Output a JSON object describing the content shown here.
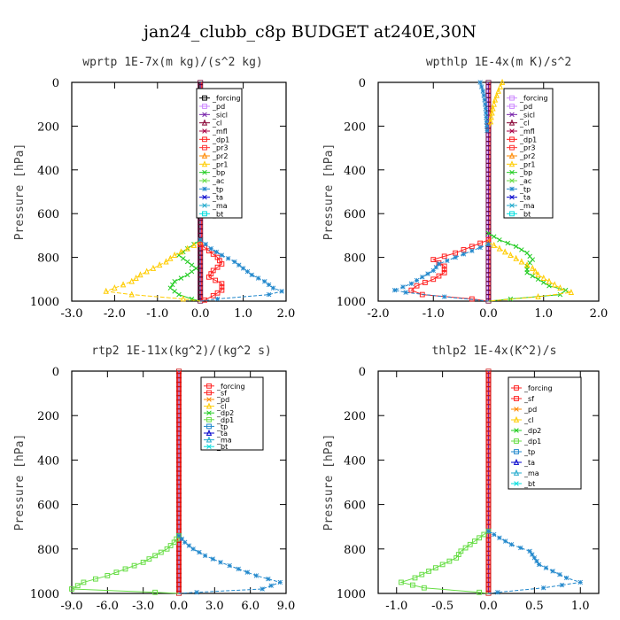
{
  "figure_title": "jan24_clubb_c8p  BUDGET at240E,30N",
  "chart_data": [
    {
      "type": "line",
      "title": "wprtp  1E-7x(m kg)/(s^2 kg)",
      "ylabel": "Pressure [hPa]",
      "xlim": [
        -3.0,
        2.0
      ],
      "ylim": [
        1000,
        0
      ],
      "xticks": [
        "-3.0",
        "-2.0",
        "-1.0",
        "0.0",
        "1.0",
        "2.0"
      ],
      "xtick_values": [
        -3,
        -2,
        -1,
        0,
        1,
        2
      ],
      "yticks": [
        "0",
        "200",
        "400",
        "600",
        "800",
        "1000"
      ],
      "ytick_values": [
        0,
        200,
        400,
        600,
        800,
        1000
      ],
      "legend": [
        "_forcing",
        "_pd",
        "_sicl",
        "_cl",
        "_mfl",
        "_dp1",
        "_pr3",
        "_pr2",
        "_pr1",
        "_bp",
        "_ac",
        "_tp",
        "_ta",
        "_ma",
        "_bt"
      ],
      "legend_colors": [
        "#000000",
        "#cc88ff",
        "#7722aa",
        "#880033",
        "#aa0044",
        "#ff2222",
        "#ff3333",
        "#ff8800",
        "#ffcc00",
        "#22cc22",
        "#66dd44",
        "#2288cc",
        "#0000cc",
        "#22aacc",
        "#00dddd"
      ],
      "series": [
        {
          "name": "_bp",
          "color": "#22cc22",
          "marker": "x",
          "p": [
            720,
            760,
            790,
            820,
            850,
            880,
            910,
            940,
            970,
            990,
            1000
          ],
          "values": [
            0.0,
            -0.3,
            -0.5,
            -0.3,
            -0.1,
            -0.3,
            -0.6,
            -0.7,
            -0.5,
            -0.2,
            0.0
          ]
        },
        {
          "name": "_pr1",
          "color": "#ffcc00",
          "marker": "triangle",
          "p": [
            730,
            760,
            790,
            820,
            850,
            880,
            910,
            940,
            955,
            970,
            990,
            1000
          ],
          "values": [
            0.0,
            -0.3,
            -0.6,
            -0.8,
            -1.1,
            -1.4,
            -1.6,
            -2.0,
            -2.2,
            -1.6,
            -0.4,
            0.0
          ]
        },
        {
          "name": "_dp1",
          "color": "#ff2222",
          "marker": "square",
          "p": [
            740,
            770,
            800,
            830,
            860,
            890,
            920,
            950,
            975,
            995,
            1000
          ],
          "values": [
            0.0,
            0.2,
            0.4,
            0.5,
            0.3,
            0.2,
            0.5,
            0.5,
            0.3,
            0.1,
            0.0
          ]
        },
        {
          "name": "_tp",
          "color": "#2288cc",
          "marker": "star",
          "p": [
            720,
            760,
            790,
            820,
            850,
            880,
            910,
            940,
            955,
            970,
            990,
            1000
          ],
          "values": [
            0.0,
            0.25,
            0.5,
            0.8,
            1.0,
            1.2,
            1.5,
            1.7,
            1.9,
            1.6,
            0.4,
            0.0
          ]
        }
      ]
    },
    {
      "type": "line",
      "title": "wpthlp  1E-4x(m K)/s^2",
      "ylabel": "Pressure [hPa]",
      "xlim": [
        -2.0,
        2.0
      ],
      "ylim": [
        1000,
        0
      ],
      "xticks": [
        "-2.0",
        "-1.0",
        "0.0",
        "1.0",
        "2.0"
      ],
      "xtick_values": [
        -2,
        -1,
        0,
        1,
        2
      ],
      "yticks": [
        "0",
        "200",
        "400",
        "600",
        "800",
        "1000"
      ],
      "ytick_values": [
        0,
        200,
        400,
        600,
        800,
        1000
      ],
      "legend": [
        "_forcing",
        "_pd",
        "_sicl",
        "_cl",
        "_mfl",
        "_dp1",
        "_pr3",
        "_pr2",
        "_pr1",
        "_bp",
        "_ac",
        "_tp",
        "_ta",
        "_ma",
        "_bt"
      ],
      "legend_colors": [
        "#cc88ff",
        "#cc88ff",
        "#7722aa",
        "#880033",
        "#aa0044",
        "#ff2222",
        "#ff3333",
        "#ff8800",
        "#ffcc00",
        "#22cc22",
        "#66dd44",
        "#2288cc",
        "#0000cc",
        "#22aacc",
        "#00dddd"
      ],
      "series": [
        {
          "name": "_tp",
          "color": "#2288cc",
          "marker": "star",
          "p": [
            0,
            40,
            80,
            120,
            160,
            200,
            240
          ],
          "values": [
            -0.15,
            -0.1,
            -0.07,
            -0.05,
            -0.04,
            -0.03,
            -0.02
          ]
        },
        {
          "name": "_pr1",
          "color": "#ffcc00",
          "marker": "triangle",
          "p": [
            0,
            40,
            80,
            120,
            160,
            200
          ],
          "values": [
            0.25,
            0.18,
            0.12,
            0.08,
            0.05,
            0.03
          ]
        },
        {
          "name": "_bp",
          "color": "#22cc22",
          "marker": "x",
          "p": [
            690,
            720,
            750,
            780,
            810,
            840,
            870,
            900,
            930,
            950,
            970,
            990,
            1000
          ],
          "values": [
            0.0,
            0.2,
            0.5,
            0.7,
            0.8,
            0.7,
            0.7,
            0.9,
            1.1,
            1.4,
            1.3,
            0.4,
            0.0
          ]
        },
        {
          "name": "_pr1",
          "color": "#ffcc00",
          "marker": "triangle",
          "p": [
            730,
            760,
            790,
            820,
            850,
            880,
            910,
            940,
            960,
            980,
            1000
          ],
          "values": [
            0.0,
            0.2,
            0.4,
            0.6,
            0.8,
            0.9,
            1.1,
            1.3,
            1.5,
            0.9,
            0.0
          ]
        },
        {
          "name": "_dp1",
          "color": "#ff2222",
          "marker": "square",
          "p": [
            720,
            750,
            780,
            810,
            840,
            870,
            900,
            930,
            950,
            970,
            990,
            1000
          ],
          "values": [
            0.0,
            -0.3,
            -0.6,
            -1.0,
            -0.8,
            -0.8,
            -1.0,
            -1.3,
            -1.4,
            -1.2,
            -0.3,
            0.0
          ]
        },
        {
          "name": "_tp",
          "color": "#2288cc",
          "marker": "star",
          "p": [
            740,
            770,
            800,
            830,
            860,
            890,
            920,
            950,
            960,
            980,
            1000
          ],
          "values": [
            0.0,
            -0.3,
            -0.6,
            -0.9,
            -1.0,
            -1.2,
            -1.4,
            -1.7,
            -1.5,
            -0.8,
            0.0
          ]
        }
      ]
    },
    {
      "type": "line",
      "title": "rtp2  1E-11x(kg^2)/(kg^2 s)",
      "ylabel": "Pressure [hPa]",
      "xlim": [
        -9.0,
        9.0
      ],
      "ylim": [
        1000,
        0
      ],
      "xticks": [
        "-9.0",
        "-6.0",
        "-3.0",
        "0.0",
        "3.0",
        "6.0",
        "9.0"
      ],
      "xtick_values": [
        -9,
        -6,
        -3,
        0,
        3,
        6,
        9
      ],
      "yticks": [
        "0",
        "200",
        "400",
        "600",
        "800",
        "1000"
      ],
      "ytick_values": [
        0,
        200,
        400,
        600,
        800,
        1000
      ],
      "legend": [
        "_forcing",
        "_sf",
        "_pd",
        "_cl",
        "_dp2",
        "_dp1",
        "_tp",
        "_ta",
        "_ma",
        "_bt"
      ],
      "legend_colors": [
        "#ff2222",
        "#ff2222",
        "#ff8800",
        "#ffcc00",
        "#22cc22",
        "#66dd44",
        "#2288cc",
        "#0000cc",
        "#22aacc",
        "#00dddd"
      ],
      "series": [
        {
          "name": "_dp1",
          "color": "#66dd44",
          "marker": "square",
          "p": [
            740,
            770,
            800,
            830,
            860,
            890,
            920,
            950,
            980,
            995,
            1000
          ],
          "values": [
            0.0,
            -0.4,
            -1.0,
            -2.0,
            -3.0,
            -4.5,
            -6.0,
            -8.0,
            -9.0,
            -2.0,
            0.0
          ]
        },
        {
          "name": "_tp",
          "color": "#2288cc",
          "marker": "star",
          "p": [
            740,
            770,
            800,
            830,
            860,
            890,
            920,
            950,
            980,
            995,
            1000
          ],
          "values": [
            0.0,
            0.5,
            1.2,
            2.2,
            3.5,
            5.0,
            6.5,
            8.5,
            7.0,
            1.5,
            0.0
          ]
        }
      ]
    },
    {
      "type": "line",
      "title": "thlp2  1E-4x(K^2)/s",
      "ylabel": "Pressure [hPa]",
      "xlim": [
        -1.2,
        1.2
      ],
      "ylim": [
        1000,
        0
      ],
      "xticks": [
        "-1.0",
        "-0.5",
        "0.0",
        "0.5",
        "1.0"
      ],
      "xtick_values": [
        -1.0,
        -0.5,
        0.0,
        0.5,
        1.0
      ],
      "yticks": [
        "0",
        "200",
        "400",
        "600",
        "800",
        "1000"
      ],
      "ytick_values": [
        0,
        200,
        400,
        600,
        800,
        1000
      ],
      "legend": [
        "_forcing",
        "_sf",
        "_pd",
        "_cl",
        "_dp2",
        "_dp1",
        "_tp",
        "_ta",
        "_ma",
        "_bt"
      ],
      "legend_colors": [
        "#ff2222",
        "#ff2222",
        "#ff8800",
        "#ffcc00",
        "#22cc22",
        "#66dd44",
        "#2288cc",
        "#0000cc",
        "#22aacc",
        "#00dddd"
      ],
      "series": [
        {
          "name": "_dp1",
          "color": "#66dd44",
          "marker": "square",
          "p": [
            720,
            750,
            780,
            810,
            840,
            870,
            900,
            930,
            950,
            975,
            995,
            1000
          ],
          "values": [
            0.0,
            -0.1,
            -0.2,
            -0.3,
            -0.35,
            -0.5,
            -0.65,
            -0.8,
            -0.95,
            -0.7,
            -0.1,
            0.0
          ]
        },
        {
          "name": "_tp",
          "color": "#2288cc",
          "marker": "star",
          "p": [
            720,
            750,
            780,
            810,
            840,
            870,
            900,
            930,
            950,
            975,
            995,
            1000
          ],
          "values": [
            0.0,
            0.12,
            0.25,
            0.45,
            0.5,
            0.55,
            0.7,
            0.85,
            1.0,
            0.6,
            0.1,
            0.0
          ]
        }
      ]
    }
  ]
}
